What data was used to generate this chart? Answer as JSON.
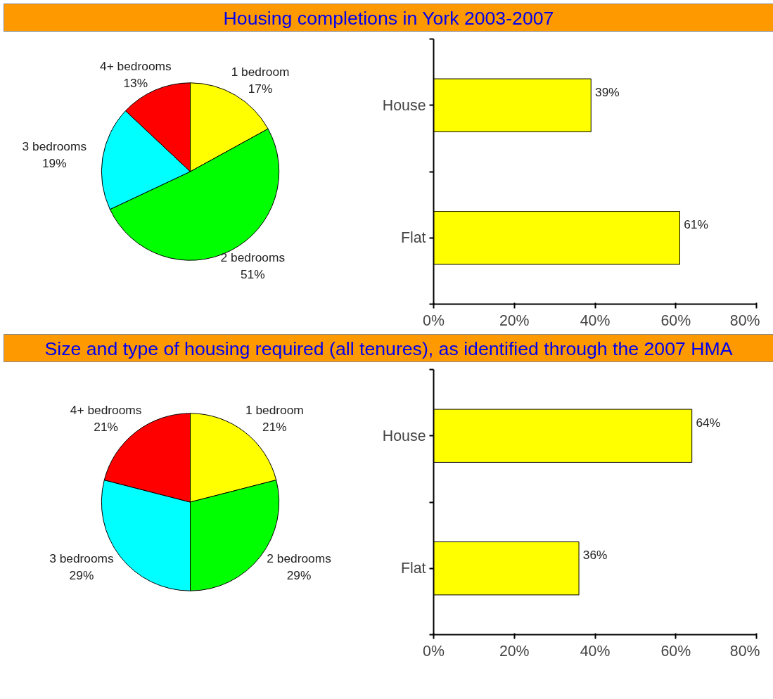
{
  "chart_data": [
    {
      "type": "pie",
      "title": "Housing completions in York 2003-2007",
      "categories": [
        "1 bedroom",
        "2 bedrooms",
        "3 bedrooms",
        "4+ bedrooms"
      ],
      "values": [
        17,
        51,
        19,
        13
      ],
      "value_labels": [
        "17%",
        "51%",
        "19%",
        "13%"
      ],
      "colors": [
        "#ffff00",
        "#00ff00",
        "#00ffff",
        "#ff0000"
      ],
      "legend": false
    },
    {
      "type": "bar",
      "orientation": "horizontal",
      "categories": [
        "House",
        "Flat"
      ],
      "values": [
        39,
        61
      ],
      "value_labels": [
        "39%",
        "61%"
      ],
      "color": "#ffff00",
      "xlim": [
        0,
        80
      ],
      "xticks": [
        {
          "value": 0,
          "label": "0%"
        },
        {
          "value": 20,
          "label": "20%"
        },
        {
          "value": 40,
          "label": "40%"
        },
        {
          "value": 60,
          "label": "60%"
        },
        {
          "value": 80,
          "label": "80%"
        }
      ],
      "grid": false
    },
    {
      "type": "pie",
      "title": "Size and type of housing required (all tenures), as identified through the 2007 HMA",
      "categories": [
        "1 bedroom",
        "2 bedrooms",
        "3 bedrooms",
        "4+ bedrooms"
      ],
      "values": [
        21,
        29,
        29,
        21
      ],
      "value_labels": [
        "21%",
        "29%",
        "29%",
        "21%"
      ],
      "colors": [
        "#ffff00",
        "#00ff00",
        "#00ffff",
        "#ff0000"
      ],
      "legend": false
    },
    {
      "type": "bar",
      "orientation": "horizontal",
      "categories": [
        "House",
        "Flat"
      ],
      "values": [
        64,
        36
      ],
      "value_labels": [
        "64%",
        "36%"
      ],
      "color": "#ffff00",
      "xlim": [
        0,
        80
      ],
      "xticks": [
        {
          "value": 0,
          "label": "0%"
        },
        {
          "value": 20,
          "label": "20%"
        },
        {
          "value": 40,
          "label": "40%"
        },
        {
          "value": 60,
          "label": "60%"
        },
        {
          "value": 80,
          "label": "80%"
        }
      ],
      "grid": false
    }
  ]
}
